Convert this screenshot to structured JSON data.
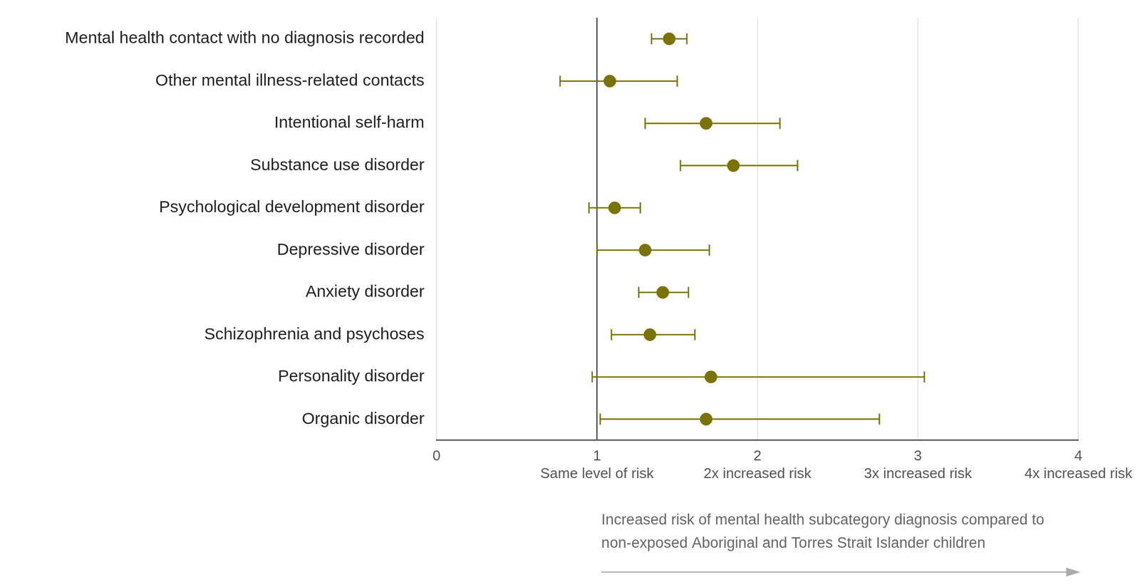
{
  "chart_data": {
    "type": "scatter",
    "orientation": "horizontal",
    "categories": [
      "Mental health contact with no diagnosis recorded",
      "Other mental illness-related contacts",
      "Intentional self-harm",
      "Substance use disorder",
      "Psychological development disorder",
      "Depressive disorder",
      "Anxiety disorder",
      "Schizophrenia and psychoses",
      "Personality disorder",
      "Organic disorder"
    ],
    "values": [
      1.45,
      1.08,
      1.68,
      1.85,
      1.11,
      1.3,
      1.41,
      1.33,
      1.71,
      1.68
    ],
    "error_low": [
      1.34,
      0.77,
      1.3,
      1.52,
      0.95,
      1.0,
      1.26,
      1.09,
      0.97,
      1.02
    ],
    "error_high": [
      1.56,
      1.5,
      2.14,
      2.25,
      1.27,
      1.7,
      1.57,
      1.61,
      3.04,
      2.76
    ],
    "color": "#7a7306",
    "marker": "circle",
    "xlim": [
      0,
      4
    ],
    "xticks": [
      0,
      {
        "value": 1,
        "label": "1\nSame level of risk"
      },
      {
        "value": 2,
        "label": "2\n2x increased risk"
      },
      {
        "value": 3,
        "label": "3\n3x increased risk"
      },
      {
        "value": 4,
        "label": "4\n4x increased risk"
      }
    ],
    "xlabel": "Increased risk of mental health subcategory diagnosis compared to non-exposed Aboriginal and Torres Strait Islander children",
    "grid": true
  }
}
